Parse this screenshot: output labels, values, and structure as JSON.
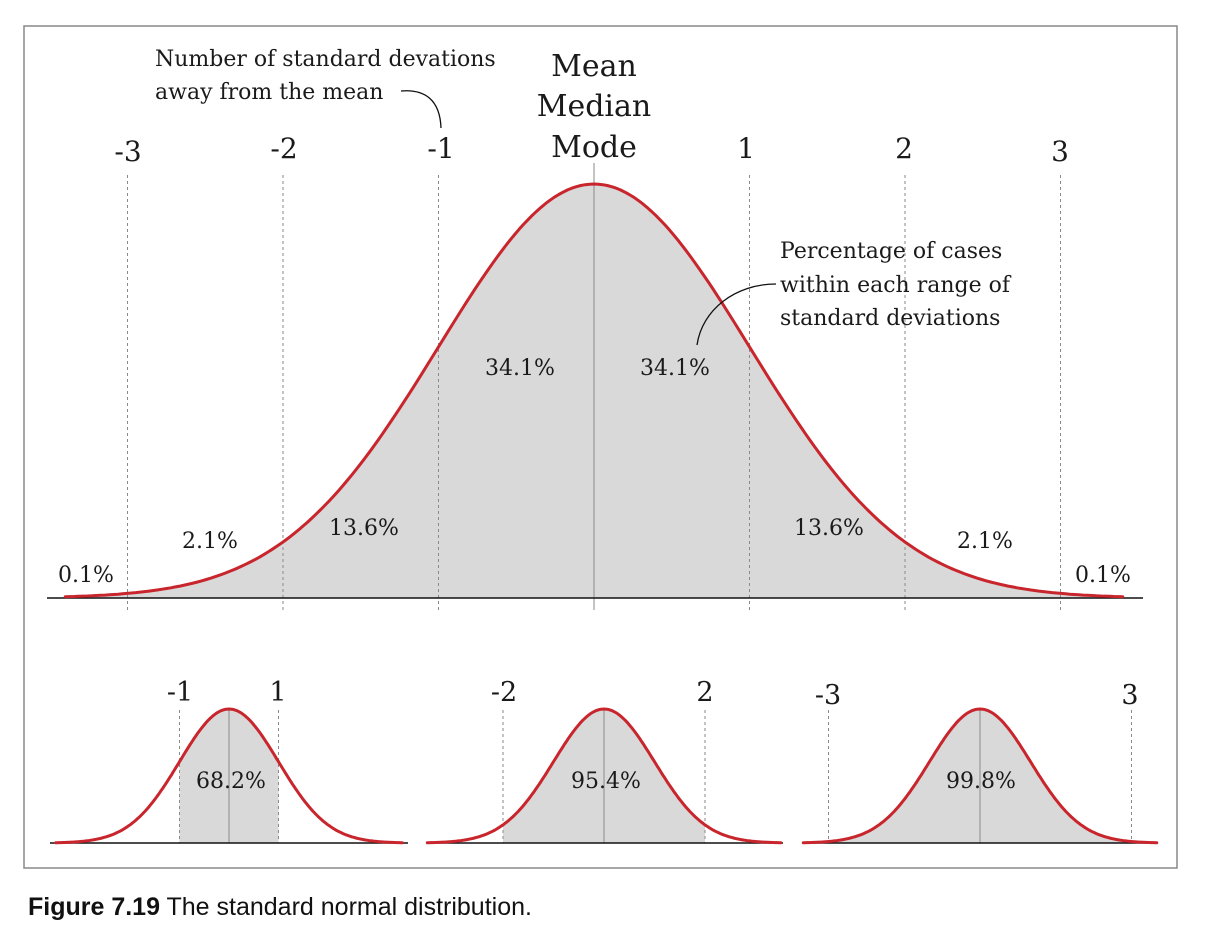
{
  "caption": {
    "number": "Figure 7.19",
    "text": "The standard normal distribution."
  },
  "annotations": {
    "sd_note_line1": "Number of standard devations",
    "sd_note_line2": "away from the mean",
    "center_line1": "Mean",
    "center_line2": "Median",
    "center_line3": "Mode",
    "pct_note_line1": "Percentage of cases",
    "pct_note_line2": "within each range of",
    "pct_note_line3": "standard deviations"
  },
  "colors": {
    "curve": "#c8252c",
    "fill": "#d9d9d9",
    "frame": "#888888",
    "axis": "#111111"
  },
  "chart_data": [
    {
      "type": "area",
      "distribution": "standard normal",
      "xlim": [
        -3.4,
        3.4
      ],
      "x_ticks": [
        -3,
        -2,
        -1,
        0,
        1,
        2,
        3
      ],
      "x_tick_labels": [
        "-3",
        "-2",
        "-1",
        "",
        "1",
        "2",
        "3"
      ],
      "regions": [
        {
          "from": -3.4,
          "to": -3,
          "label": "0.1%"
        },
        {
          "from": -3,
          "to": -2,
          "label": "2.1%"
        },
        {
          "from": -2,
          "to": -1,
          "label": "13.6%"
        },
        {
          "from": -1,
          "to": 0,
          "label": "34.1%"
        },
        {
          "from": 0,
          "to": 1,
          "label": "34.1%"
        },
        {
          "from": 1,
          "to": 2,
          "label": "13.6%"
        },
        {
          "from": 2,
          "to": 3,
          "label": "2.1%"
        },
        {
          "from": 3,
          "to": 3.4,
          "label": "0.1%"
        }
      ]
    },
    {
      "type": "area",
      "distribution": "standard normal",
      "shaded_range": [
        -1,
        1
      ],
      "tick_labels": [
        "-1",
        "1"
      ],
      "label": "68.2%"
    },
    {
      "type": "area",
      "distribution": "standard normal",
      "shaded_range": [
        -2,
        2
      ],
      "tick_labels": [
        "-2",
        "2"
      ],
      "label": "95.4%"
    },
    {
      "type": "area",
      "distribution": "standard normal",
      "shaded_range": [
        -3,
        3
      ],
      "tick_labels": [
        "-3",
        "3"
      ],
      "label": "99.8%"
    }
  ]
}
